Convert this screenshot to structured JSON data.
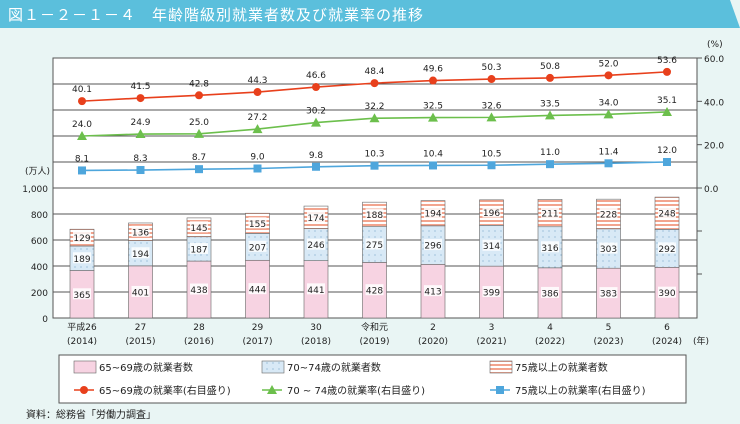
{
  "header": {
    "title": "図１－２－１－４　年齢階級別就業者数及び就業率の推移"
  },
  "source": "資料：総務省「労働力調査」",
  "chart_data": {
    "type": "bar+line",
    "categories": [
      [
        "平成26",
        "(2014)"
      ],
      [
        "27",
        "(2015)"
      ],
      [
        "28",
        "(2016)"
      ],
      [
        "29",
        "(2017)"
      ],
      [
        "30",
        "(2018)"
      ],
      [
        "令和元",
        "(2019)"
      ],
      [
        "2",
        "(2020)"
      ],
      [
        "3",
        "(2021)"
      ],
      [
        "4",
        "(2022)"
      ],
      [
        "5",
        "(2023)"
      ],
      [
        "6",
        "(2024)"
      ]
    ],
    "x_unit": "(年)",
    "left_axis": {
      "unit": "(万人)",
      "ticks": [
        0,
        200,
        400,
        600,
        800,
        1000
      ],
      "tick_labels": [
        "0",
        "200",
        "400",
        "600",
        "800",
        "1,000"
      ]
    },
    "right_axis": {
      "unit": "(%)",
      "ticks": [
        0,
        20,
        40,
        60
      ],
      "tick_labels": [
        "0.0",
        "20.0",
        "40.0",
        "60.0"
      ]
    },
    "bar_series": [
      {
        "name": "65~69歳の就業者数",
        "color": "#f7d3e2",
        "pattern": "solid",
        "values": [
          365,
          401,
          438,
          444,
          441,
          428,
          413,
          399,
          386,
          383,
          390
        ]
      },
      {
        "name": "70~74歳の就業者数",
        "color": "#d8e9f6",
        "pattern": "dots",
        "values": [
          189,
          194,
          187,
          207,
          246,
          275,
          296,
          314,
          316,
          303,
          292
        ]
      },
      {
        "name": "75歳以上の就業者数",
        "color": "#f2a48e",
        "pattern": "stripes",
        "values": [
          129,
          136,
          145,
          155,
          174,
          188,
          194,
          196,
          211,
          228,
          248
        ]
      }
    ],
    "line_series": [
      {
        "name": "65~69歳の就業率(右目盛り)",
        "color": "#e8401c",
        "marker": "circle",
        "values": [
          40.1,
          41.5,
          42.8,
          44.3,
          46.6,
          48.4,
          49.6,
          50.3,
          50.8,
          52.0,
          53.6
        ]
      },
      {
        "name": "70 ~ 74歳の就業率(右目盛り)",
        "color": "#6cbf4c",
        "marker": "triangle",
        "values": [
          24.0,
          24.9,
          25.0,
          27.2,
          30.2,
          32.2,
          32.5,
          32.6,
          33.5,
          34.0,
          35.1
        ]
      },
      {
        "name": "75歳以上の就業率(右目盛り)",
        "color": "#4ea6dc",
        "marker": "square",
        "values": [
          8.1,
          8.3,
          8.7,
          9.0,
          9.8,
          10.3,
          10.4,
          10.5,
          11.0,
          11.4,
          12.0
        ]
      }
    ]
  }
}
